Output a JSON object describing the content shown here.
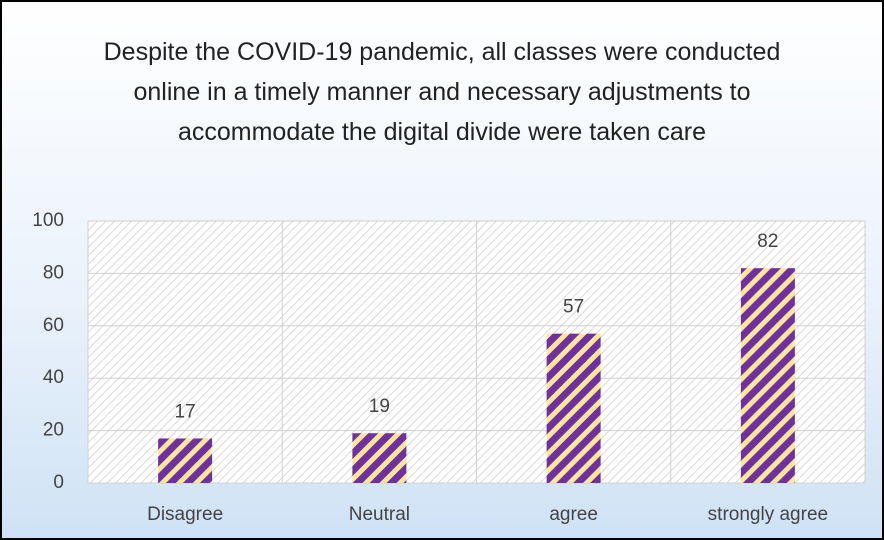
{
  "chart_data": {
    "type": "bar",
    "title": "Despite the COVID-19 pandemic, all classes were conducted online in a timely manner and necessary adjustments to accommodate the digital divide were taken care",
    "categories": [
      "Disagree",
      "Neutral",
      "agree",
      "strongly agree"
    ],
    "values": [
      17,
      19,
      57,
      82
    ],
    "color": "#7030a0",
    "stripe_color": "#ffe699",
    "ylim": [
      0,
      100
    ],
    "yticks": [
      0,
      20,
      40,
      60,
      80,
      100
    ],
    "grid": true
  }
}
